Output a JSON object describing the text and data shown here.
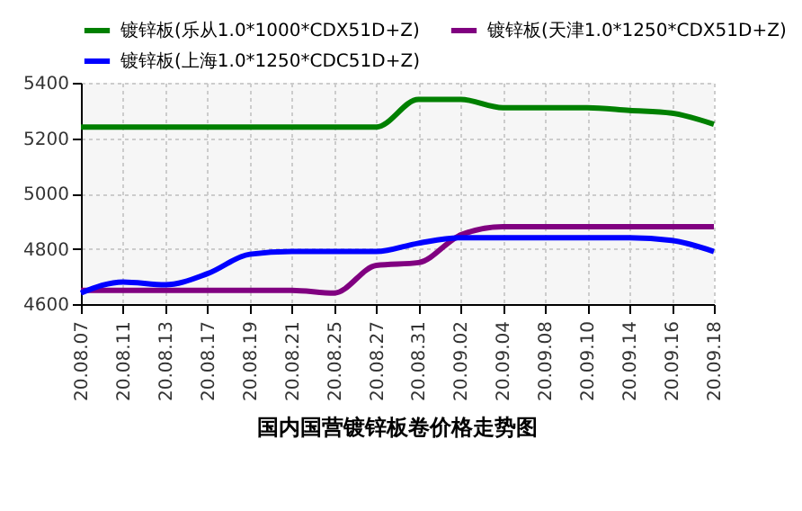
{
  "chart_data": {
    "type": "line",
    "title": "国内国营镀锌板卷价格走势图",
    "categories": [
      "20.08.07",
      "20.08.11",
      "20.08.13",
      "20.08.17",
      "20.08.19",
      "20.08.21",
      "20.08.25",
      "20.08.27",
      "20.08.31",
      "20.09.02",
      "20.09.04",
      "20.09.08",
      "20.09.10",
      "20.09.14",
      "20.09.16",
      "20.09.18"
    ],
    "series": [
      {
        "name": "镀锌板(乐从1.0*1000*CDX51D+Z)",
        "color": "#008000",
        "values": [
          5240,
          5240,
          5240,
          5240,
          5240,
          5240,
          5240,
          5240,
          5340,
          5340,
          5310,
          5310,
          5310,
          5300,
          5290,
          5250
        ]
      },
      {
        "name": "镀锌板(天津1.0*1250*CDX51D+Z)",
        "color": "#800080",
        "values": [
          4650,
          4650,
          4650,
          4650,
          4650,
          4650,
          4640,
          4740,
          4750,
          4850,
          4880,
          4880,
          4880,
          4880,
          4880,
          4880
        ]
      },
      {
        "name": "镀锌板(上海1.0*1250*CDC51D+Z)",
        "color": "#0000ff",
        "values": [
          4640,
          4680,
          4670,
          4710,
          4780,
          4790,
          4790,
          4790,
          4820,
          4840,
          4840,
          4840,
          4840,
          4840,
          4830,
          4790
        ]
      }
    ],
    "ylim": [
      4600,
      5400
    ],
    "yticks": [
      4600,
      4800,
      5000,
      5200,
      5400
    ],
    "grid": true,
    "legend": "top",
    "marker": "none",
    "line_style": "solid"
  }
}
